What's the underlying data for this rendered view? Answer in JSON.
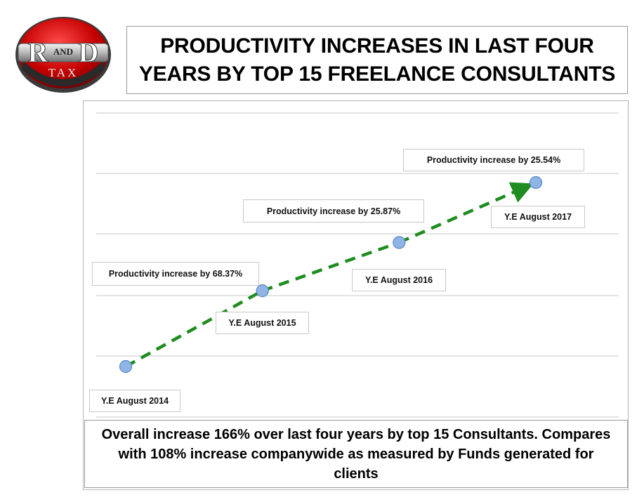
{
  "logo": {
    "top_text": "R",
    "and_text": "AND",
    "right_text": "D",
    "bottom_text": "TAX"
  },
  "title": {
    "line1": "PRODUCTIVITY INCREASES IN LAST FOUR",
    "line2": "YEARS BY TOP 15 FREELANCE CONSULTANTS"
  },
  "chart_data": {
    "type": "line",
    "categories": [
      "Y.E August 2014",
      "Y.E August 2015",
      "Y.E August 2016",
      "Y.E August 2017"
    ],
    "values": [
      100,
      168.37,
      211.93,
      266.05
    ],
    "annotations": [
      "Productivity increase by 68.37%",
      "Productivity increase by 25.87%",
      "Productivity increase by 25.54%"
    ],
    "grid": true,
    "line_style": "dashed-arrow",
    "colors": {
      "line": "#1e8c1e",
      "marker": "#8fb4e6",
      "marker_edge": "#5b86c4",
      "grid": "#c9c9c9"
    }
  },
  "summary": {
    "text": "Overall increase 166% over last four years by top 15 Consultants.  Compares with  108% increase companywide as measured by Funds generated for clients"
  }
}
